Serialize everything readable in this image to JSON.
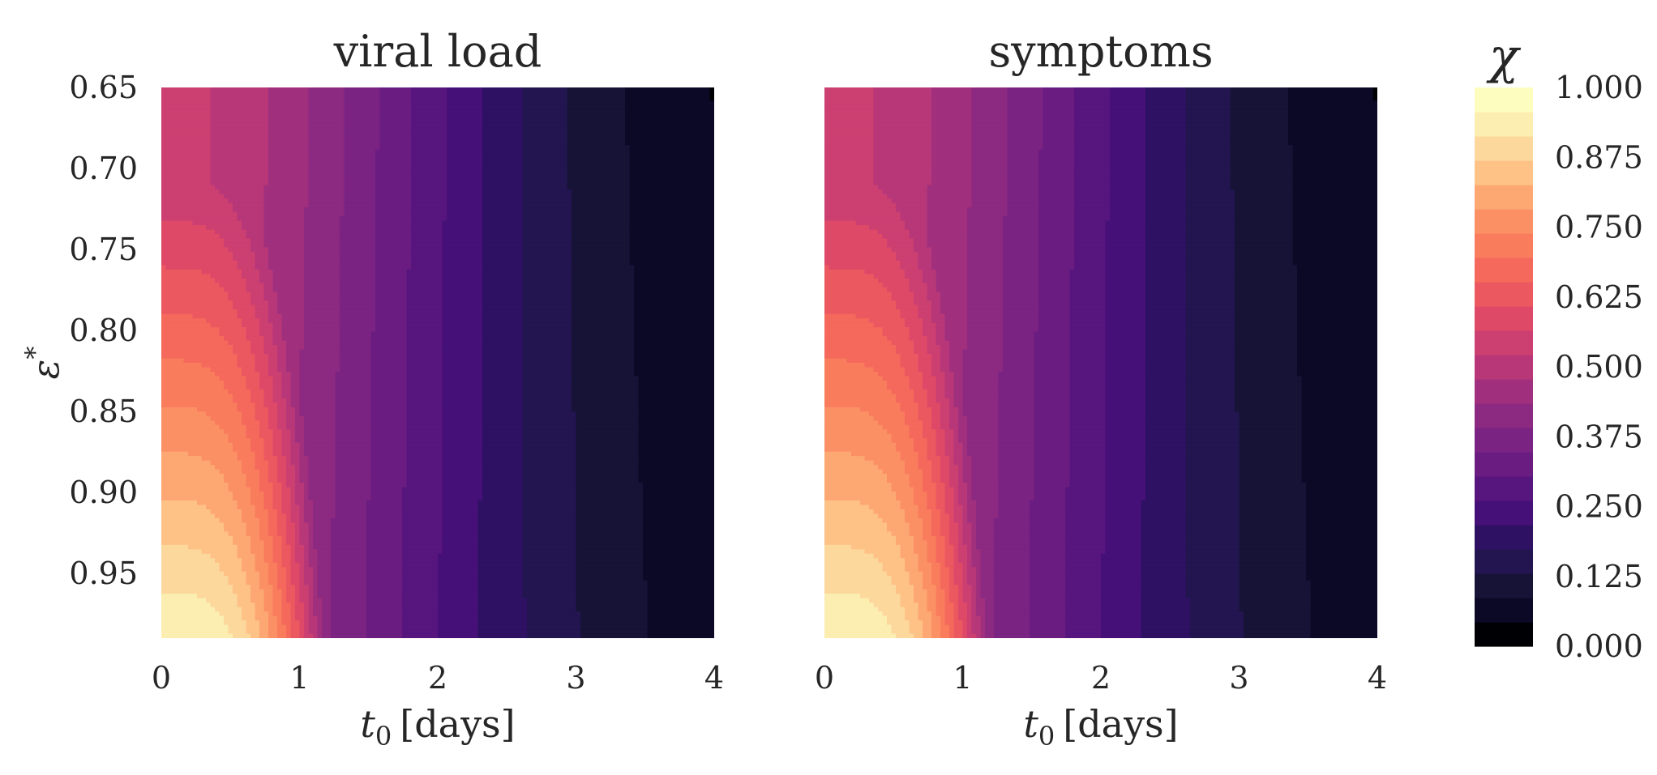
{
  "chart_data": [
    {
      "type": "heatmap",
      "title": "viral load",
      "xlabel_var": "t",
      "xlabel_sub": "0",
      "xlabel_unit": "[days]",
      "ylabel_var": "ε",
      "ylabel_sup": "*",
      "xlim": [
        0,
        4
      ],
      "ylim": [
        0.65,
        0.99
      ],
      "y_inverted": true,
      "xticks": [
        "0",
        "1",
        "2",
        "3",
        "4"
      ],
      "yticks": [
        "0.65",
        "0.70",
        "0.75",
        "0.80",
        "0.85",
        "0.90",
        "0.95"
      ],
      "contour_levels": 21,
      "chi_at_eps_0_65": [
        0.46,
        0.46,
        0.44,
        0.33,
        0.05
      ],
      "chi_at_eps_0_99": [
        1.0,
        1.0,
        0.5,
        0.13,
        0.0
      ],
      "colormap": "magma"
    },
    {
      "type": "heatmap",
      "title": "symptoms",
      "xlabel_var": "t",
      "xlabel_sub": "0",
      "xlabel_unit": "[days]",
      "xlim": [
        0,
        4
      ],
      "ylim": [
        0.65,
        0.99
      ],
      "y_inverted": true,
      "xticks": [
        "0",
        "1",
        "2",
        "3",
        "4"
      ],
      "contour_levels": 21,
      "chi_at_eps_0_65": [
        0.46,
        0.46,
        0.44,
        0.33,
        0.05
      ],
      "chi_at_eps_0_99": [
        1.0,
        1.0,
        0.5,
        0.13,
        0.0
      ],
      "colormap": "magma"
    }
  ],
  "colorbar": {
    "title": "χ",
    "range": [
      0,
      1
    ],
    "ticks": [
      "1.000",
      "0.875",
      "0.750",
      "0.625",
      "0.500",
      "0.375",
      "0.250",
      "0.125",
      "0.000"
    ],
    "colors": [
      "#000004",
      "#0c0926",
      "#171337",
      "#221550",
      "#2f1163",
      "#451077",
      "#57157e",
      "#6a1c81",
      "#7b2382",
      "#8c2981",
      "#a0307d",
      "#b73779",
      "#cc3f71",
      "#de4968",
      "#ec5860",
      "#f4695c",
      "#f97c5d",
      "#fb9065",
      "#fda872",
      "#fec287",
      "#fcd89d",
      "#fbeeb0",
      "#fcfdbf"
    ]
  }
}
